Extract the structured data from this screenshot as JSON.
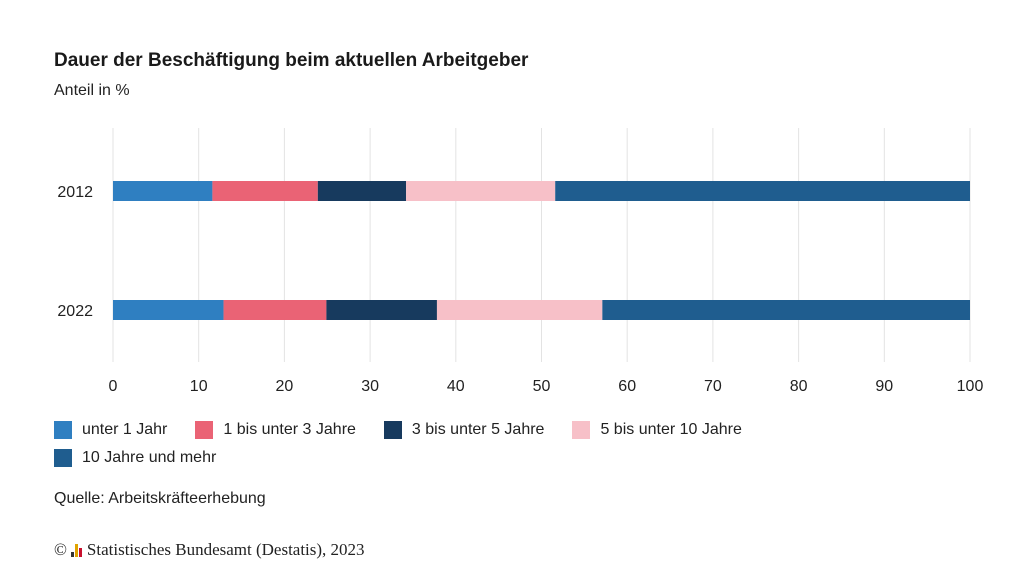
{
  "title": "Dauer der Beschäftigung beim aktuellen Arbeitgeber",
  "subtitle": "Anteil in %",
  "source": "Quelle: Arbeitskräfteerhebung",
  "copyright": {
    "symbol": "©",
    "text": "Statistisches Bundesamt (Destatis), 2023"
  },
  "chart_data": {
    "type": "bar",
    "orientation": "horizontal",
    "stacked": true,
    "categories": [
      "2012",
      "2022"
    ],
    "series": [
      {
        "name": "unter 1 Jahr",
        "color": "#2f7fc1",
        "values": [
          11.6,
          12.9
        ]
      },
      {
        "name": "1 bis unter 3 Jahre",
        "color": "#ea6375",
        "values": [
          12.3,
          12.0
        ]
      },
      {
        "name": "3 bis unter 5 Jahre",
        "color": "#173a5e",
        "values": [
          10.3,
          12.9
        ]
      },
      {
        "name": "5 bis unter 10 Jahre",
        "color": "#f7c0c8",
        "values": [
          17.4,
          19.3
        ]
      },
      {
        "name": "10 Jahre und mehr",
        "color": "#1f5d8f",
        "values": [
          48.4,
          42.9
        ]
      }
    ],
    "xlim": [
      0,
      100
    ],
    "xticks": [
      0,
      10,
      20,
      30,
      40,
      50,
      60,
      70,
      80,
      90,
      100
    ],
    "grid": "vertical",
    "legend": "bottom"
  }
}
